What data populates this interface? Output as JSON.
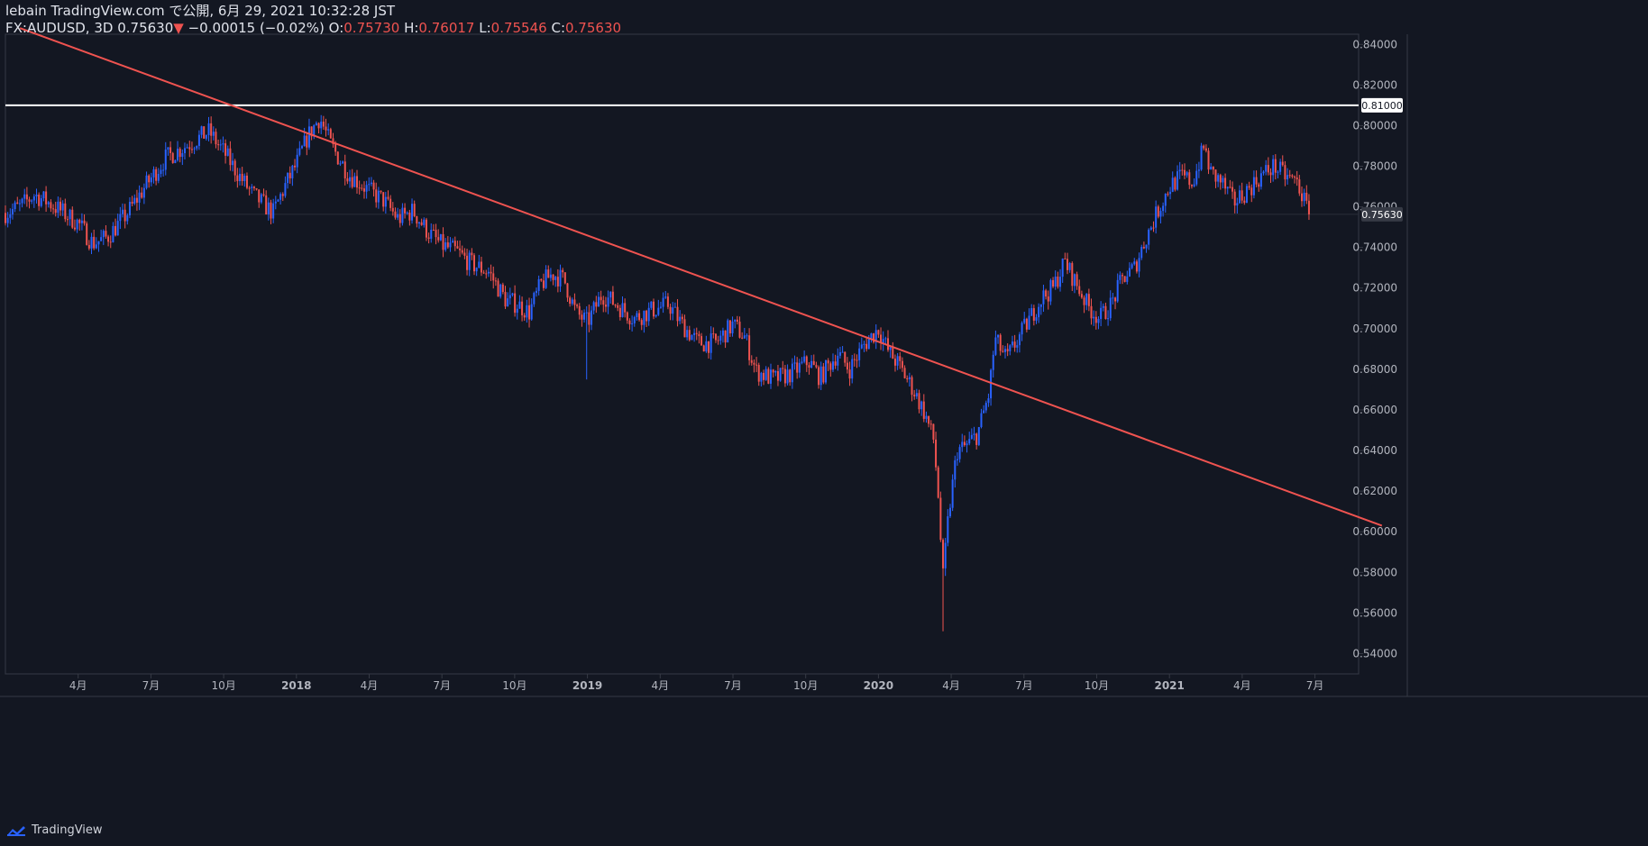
{
  "header": {
    "published": "lebain TradingView.com で公開, 6月 29, 2021 10:32:28 JST",
    "symbol": "FX:AUDUSD, 3D",
    "last": "0.75630",
    "change_arrow": "▼",
    "change": "−0.00015 (−0.02%)",
    "o_label": "O:",
    "o": "0.75730",
    "h_label": "H:",
    "h": "0.76017",
    "l_label": "L:",
    "l": "0.75546",
    "c_label": "C:",
    "c": "0.75630"
  },
  "brand": {
    "name": "TradingView",
    "icon": "tradingview-logo-icon"
  },
  "colors": {
    "bg": "#131722",
    "up": "#2962ff",
    "down": "#ef5350",
    "axis": "#787b86",
    "text": "#d1d4dc",
    "trend": "#ef5350",
    "level": "#ffffff"
  },
  "chart_data": {
    "type": "candlestick",
    "symbol": "FX:AUDUSD",
    "timeframe": "3D",
    "x_start": 2017.0,
    "x_end": 2021.65,
    "ylim": [
      0.53,
      0.845
    ],
    "y_ticks": [
      "0.84000",
      "0.82000",
      "0.80000",
      "0.78000",
      "0.76000",
      "0.74000",
      "0.72000",
      "0.70000",
      "0.68000",
      "0.66000",
      "0.64000",
      "0.62000",
      "0.60000",
      "0.58000",
      "0.56000",
      "0.54000"
    ],
    "x_ticks": [
      {
        "t": 2017.25,
        "label": "4月"
      },
      {
        "t": 2017.5,
        "label": "7月"
      },
      {
        "t": 2017.75,
        "label": "10月"
      },
      {
        "t": 2018.0,
        "label": "2018"
      },
      {
        "t": 2018.25,
        "label": "4月"
      },
      {
        "t": 2018.5,
        "label": "7月"
      },
      {
        "t": 2018.75,
        "label": "10月"
      },
      {
        "t": 2019.0,
        "label": "2019"
      },
      {
        "t": 2019.25,
        "label": "4月"
      },
      {
        "t": 2019.5,
        "label": "7月"
      },
      {
        "t": 2019.75,
        "label": "10月"
      },
      {
        "t": 2020.0,
        "label": "2020"
      },
      {
        "t": 2020.25,
        "label": "4月"
      },
      {
        "t": 2020.5,
        "label": "7月"
      },
      {
        "t": 2020.75,
        "label": "10月"
      },
      {
        "t": 2021.0,
        "label": "2021"
      },
      {
        "t": 2021.25,
        "label": "4月"
      },
      {
        "t": 2021.5,
        "label": "7月"
      }
    ],
    "close_anchors": [
      [
        2017.0,
        0.757
      ],
      [
        2017.05,
        0.76
      ],
      [
        2017.1,
        0.766
      ],
      [
        2017.15,
        0.762
      ],
      [
        2017.2,
        0.757
      ],
      [
        2017.25,
        0.752
      ],
      [
        2017.3,
        0.742
      ],
      [
        2017.35,
        0.745
      ],
      [
        2017.42,
        0.757
      ],
      [
        2017.48,
        0.77
      ],
      [
        2017.55,
        0.784
      ],
      [
        2017.62,
        0.79
      ],
      [
        2017.7,
        0.797
      ],
      [
        2017.76,
        0.785
      ],
      [
        2017.8,
        0.776
      ],
      [
        2017.85,
        0.766
      ],
      [
        2017.92,
        0.757
      ],
      [
        2017.96,
        0.77
      ],
      [
        2018.0,
        0.781
      ],
      [
        2018.04,
        0.795
      ],
      [
        2018.08,
        0.804
      ],
      [
        2018.12,
        0.79
      ],
      [
        2018.18,
        0.776
      ],
      [
        2018.25,
        0.768
      ],
      [
        2018.3,
        0.763
      ],
      [
        2018.35,
        0.754
      ],
      [
        2018.4,
        0.758
      ],
      [
        2018.45,
        0.748
      ],
      [
        2018.5,
        0.741
      ],
      [
        2018.55,
        0.738
      ],
      [
        2018.6,
        0.732
      ],
      [
        2018.66,
        0.728
      ],
      [
        2018.72,
        0.714
      ],
      [
        2018.76,
        0.712
      ],
      [
        2018.8,
        0.708
      ],
      [
        2018.84,
        0.722
      ],
      [
        2018.88,
        0.727
      ],
      [
        2018.92,
        0.724
      ],
      [
        2018.96,
        0.708
      ],
      [
        2019.0,
        0.703
      ],
      [
        2019.05,
        0.717
      ],
      [
        2019.1,
        0.712
      ],
      [
        2019.16,
        0.705
      ],
      [
        2019.22,
        0.709
      ],
      [
        2019.28,
        0.712
      ],
      [
        2019.32,
        0.703
      ],
      [
        2019.38,
        0.693
      ],
      [
        2019.44,
        0.693
      ],
      [
        2019.5,
        0.702
      ],
      [
        2019.54,
        0.696
      ],
      [
        2019.58,
        0.679
      ],
      [
        2019.64,
        0.675
      ],
      [
        2019.7,
        0.678
      ],
      [
        2019.76,
        0.684
      ],
      [
        2019.8,
        0.676
      ],
      [
        2019.86,
        0.688
      ],
      [
        2019.9,
        0.68
      ],
      [
        2019.95,
        0.692
      ],
      [
        2020.0,
        0.7
      ],
      [
        2020.03,
        0.69
      ],
      [
        2020.07,
        0.682
      ],
      [
        2020.12,
        0.67
      ],
      [
        2020.16,
        0.658
      ],
      [
        2020.19,
        0.645
      ],
      [
        2020.21,
        0.61
      ],
      [
        2020.22,
        0.574
      ],
      [
        2020.24,
        0.607
      ],
      [
        2020.27,
        0.64
      ],
      [
        2020.3,
        0.642
      ],
      [
        2020.34,
        0.648
      ],
      [
        2020.38,
        0.668
      ],
      [
        2020.4,
        0.695
      ],
      [
        2020.44,
        0.685
      ],
      [
        2020.48,
        0.695
      ],
      [
        2020.52,
        0.705
      ],
      [
        2020.56,
        0.715
      ],
      [
        2020.6,
        0.72
      ],
      [
        2020.64,
        0.733
      ],
      [
        2020.68,
        0.722
      ],
      [
        2020.72,
        0.711
      ],
      [
        2020.76,
        0.705
      ],
      [
        2020.8,
        0.712
      ],
      [
        2020.84,
        0.725
      ],
      [
        2020.88,
        0.73
      ],
      [
        2020.92,
        0.745
      ],
      [
        2020.96,
        0.758
      ],
      [
        2021.0,
        0.77
      ],
      [
        2021.04,
        0.775
      ],
      [
        2021.08,
        0.772
      ],
      [
        2021.12,
        0.79
      ],
      [
        2021.14,
        0.777
      ],
      [
        2021.18,
        0.772
      ],
      [
        2021.22,
        0.762
      ],
      [
        2021.28,
        0.77
      ],
      [
        2021.32,
        0.776
      ],
      [
        2021.36,
        0.78
      ],
      [
        2021.4,
        0.775
      ],
      [
        2021.44,
        0.772
      ],
      [
        2021.48,
        0.756
      ]
    ],
    "trendline": [
      [
        2017.05,
        0.848
      ],
      [
        2021.73,
        0.603
      ]
    ],
    "horizontal_level": 0.81,
    "horizontal_label": "0.81000",
    "last_price_label": "0.75630",
    "last_price": 0.7563,
    "sharp_low": {
      "t": 2020.22,
      "low": 0.551
    },
    "sharp_wick_2019": {
      "t": 2019.0,
      "low": 0.675
    }
  }
}
